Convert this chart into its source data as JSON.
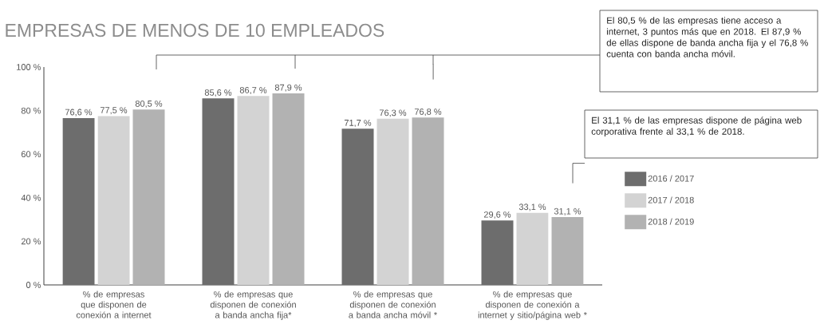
{
  "chart_data": {
    "type": "bar",
    "title": "EMPRESAS DE MENOS DE 10 EMPLEADOS",
    "categories": [
      "% de empresas que disponen de conexión a internet",
      "% de empresas que disponen de conexión a banda ancha fija*",
      "% de empresas que disponen de conexión a banda ancha móvil *",
      "% de empresas que disponen de conexión a internet y sitio/página web *"
    ],
    "series": [
      {
        "name": "2016 / 2017",
        "color": "#6d6d6d",
        "values": [
          76.6,
          85.6,
          71.7,
          29.6
        ],
        "value_labels": [
          "76,6 %",
          "85,6 %",
          "71,7 %",
          "29,6 %"
        ]
      },
      {
        "name": "2017 / 2018",
        "color": "#d3d3d3",
        "values": [
          77.5,
          86.7,
          76.3,
          33.1
        ],
        "value_labels": [
          "77,5 %",
          "86,7 %",
          "76,3 %",
          "33,1 %"
        ]
      },
      {
        "name": "2018 / 2019",
        "color": "#b2b2b2",
        "values": [
          80.5,
          87.9,
          76.8,
          31.1
        ],
        "value_labels": [
          "80,5 %",
          "87,9 %",
          "76,8 %",
          "31,1 %"
        ]
      }
    ],
    "ylim": [
      0,
      100
    ],
    "yticks": [
      {
        "value": 0,
        "label": "0 %"
      },
      {
        "value": 20,
        "label": "20 %"
      },
      {
        "value": 40,
        "label": "40 %"
      },
      {
        "value": 60,
        "label": "60 %"
      },
      {
        "value": 80,
        "label": "80 %"
      },
      {
        "value": 100,
        "label": "100 %"
      }
    ],
    "legend": "right",
    "annotations": [
      "El 80,5 % de las empresas tiene acceso a internet, 3 puntos más que en 2018. El 87,9 % de ellas dispone de banda ancha fija y el 76,8 % cuenta con banda ancha móvil.",
      "El 31,1 % de las empresas dispone de página web corporativa frente al 33,1 % de 2018."
    ]
  }
}
